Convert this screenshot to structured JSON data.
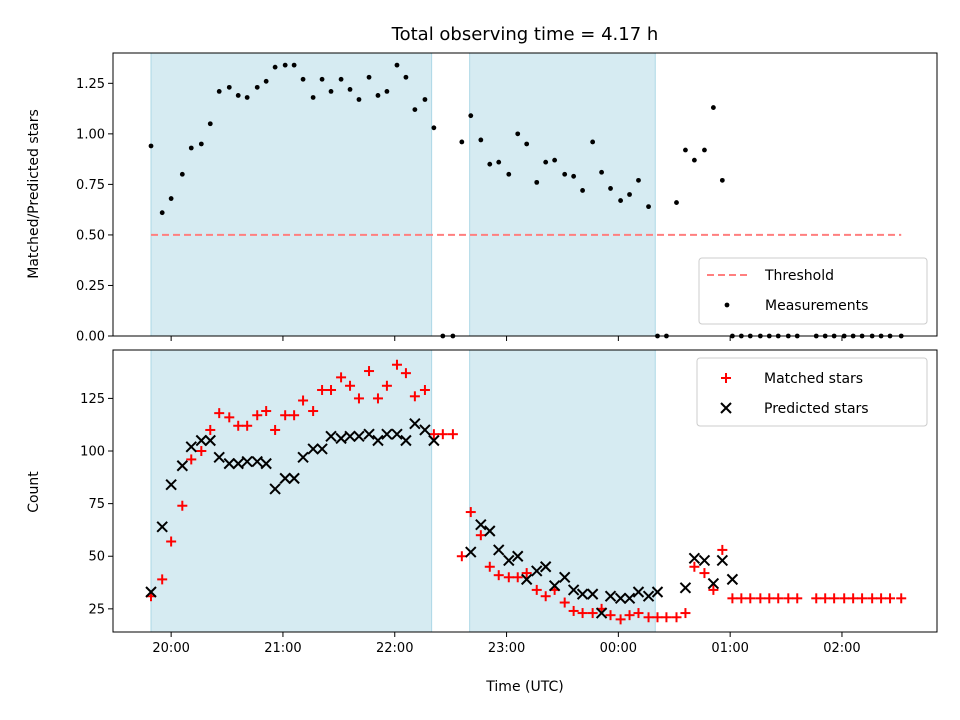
{
  "title": "Total observing time = 4.17 h",
  "colors": {
    "band": "#add8e6",
    "threshold": "#ff7f7f",
    "matched": "#ff0000",
    "predicted": "#000000",
    "measurement": "#000000"
  },
  "chart_data": [
    {
      "type": "scatter",
      "panel": "top",
      "xlabel": "",
      "ylabel": "Matched/Predicted stars",
      "xlim_hours": [
        19.48,
        26.85
      ],
      "ylim": [
        0,
        1.4
      ],
      "yticks": [
        "0.00",
        "0.25",
        "0.50",
        "0.75",
        "1.00",
        "1.25"
      ],
      "ytick_values": [
        0,
        0.25,
        0.5,
        0.75,
        1.0,
        1.25
      ],
      "shaded_intervals_hours": [
        [
          19.82,
          22.33
        ],
        [
          22.67,
          24.33
        ]
      ],
      "threshold": {
        "name": "Threshold",
        "value": 0.5,
        "x_range_hours": [
          19.82,
          26.53
        ],
        "style": "dashed"
      },
      "legend": {
        "placement": "lower right",
        "entries": [
          "Threshold",
          "Measurements"
        ]
      },
      "series": [
        {
          "name": "Measurements",
          "x_hours": [
            19.82,
            19.92,
            20.0,
            20.1,
            20.18,
            20.27,
            20.35,
            20.43,
            20.52,
            20.6,
            20.68,
            20.77,
            20.85,
            20.93,
            21.02,
            21.1,
            21.18,
            21.27,
            21.35,
            21.43,
            21.52,
            21.6,
            21.68,
            21.77,
            21.85,
            21.93,
            22.02,
            22.1,
            22.18,
            22.27,
            22.35,
            22.43,
            22.52,
            22.6,
            22.68,
            22.77,
            22.85,
            22.93,
            23.02,
            23.1,
            23.18,
            23.27,
            23.35,
            23.43,
            23.52,
            23.6,
            23.68,
            23.77,
            23.85,
            23.93,
            24.02,
            24.1,
            24.18,
            24.27,
            24.35,
            24.43,
            24.52,
            24.6,
            24.68,
            24.77,
            24.85,
            24.93,
            25.02,
            25.1,
            25.18,
            25.27,
            25.35,
            25.43,
            25.52,
            25.6,
            25.77,
            25.85,
            25.93,
            26.02,
            26.1,
            26.18,
            26.27,
            26.35,
            26.43,
            26.53
          ],
          "values": [
            0.94,
            0.61,
            0.68,
            0.8,
            0.93,
            0.95,
            1.05,
            1.21,
            1.23,
            1.19,
            1.18,
            1.23,
            1.26,
            1.33,
            1.34,
            1.34,
            1.27,
            1.18,
            1.27,
            1.21,
            1.27,
            1.22,
            1.17,
            1.28,
            1.19,
            1.21,
            1.34,
            1.28,
            1.12,
            1.17,
            1.03,
            0.0,
            0.0,
            0.96,
            1.09,
            0.97,
            0.85,
            0.86,
            0.8,
            1.0,
            0.95,
            0.76,
            0.86,
            0.87,
            0.8,
            0.79,
            0.72,
            0.96,
            0.81,
            0.73,
            0.67,
            0.7,
            0.77,
            0.64,
            0.0,
            0.0,
            0.66,
            0.92,
            0.87,
            0.92,
            1.13,
            0.77,
            0.0,
            0.0,
            0.0,
            0.0,
            0.0,
            0.0,
            0.0,
            0.0,
            0.0,
            0.0,
            0.0,
            0.0,
            0.0,
            0.0,
            0.0,
            0.0,
            0.0,
            0.0
          ]
        }
      ]
    },
    {
      "type": "scatter",
      "panel": "bottom",
      "xlabel": "Time (UTC)",
      "ylabel": "Count",
      "xlim_hours": [
        19.48,
        26.85
      ],
      "ylim": [
        14,
        148
      ],
      "xticks": [
        "20:00",
        "21:00",
        "22:00",
        "23:00",
        "00:00",
        "01:00",
        "02:00"
      ],
      "xtick_hours": [
        20,
        21,
        22,
        23,
        24,
        25,
        26
      ],
      "yticks": [
        "25",
        "50",
        "75",
        "100",
        "125"
      ],
      "ytick_values": [
        25,
        50,
        75,
        100,
        125
      ],
      "shaded_intervals_hours": [
        [
          19.82,
          22.33
        ],
        [
          22.67,
          24.33
        ]
      ],
      "legend": {
        "placement": "upper right",
        "entries": [
          "Matched stars",
          "Predicted stars"
        ]
      },
      "series": [
        {
          "name": "Matched stars",
          "marker": "+",
          "x_hours": [
            19.82,
            19.92,
            20.0,
            20.1,
            20.18,
            20.27,
            20.35,
            20.43,
            20.52,
            20.6,
            20.68,
            20.77,
            20.85,
            20.93,
            21.02,
            21.1,
            21.18,
            21.27,
            21.35,
            21.43,
            21.52,
            21.6,
            21.68,
            21.77,
            21.85,
            21.93,
            22.02,
            22.1,
            22.18,
            22.27,
            22.35,
            22.43,
            22.52,
            22.6,
            22.68,
            22.77,
            22.85,
            22.93,
            23.02,
            23.1,
            23.18,
            23.27,
            23.35,
            23.43,
            23.52,
            23.6,
            23.68,
            23.77,
            23.85,
            23.93,
            24.02,
            24.1,
            24.18,
            24.27,
            24.35,
            24.43,
            24.52,
            24.6,
            24.68,
            24.77,
            24.85,
            24.93,
            25.02,
            25.1,
            25.18,
            25.27,
            25.35,
            25.43,
            25.52,
            25.6,
            25.77,
            25.85,
            25.93,
            26.02,
            26.1,
            26.18,
            26.27,
            26.35,
            26.43,
            26.53
          ],
          "values": [
            31,
            39,
            57,
            74,
            96,
            100,
            110,
            118,
            116,
            112,
            112,
            117,
            119,
            110,
            117,
            117,
            124,
            119,
            129,
            129,
            135,
            131,
            125,
            138,
            125,
            131,
            141,
            137,
            126,
            129,
            108,
            108,
            108,
            50,
            71,
            60,
            45,
            41,
            40,
            40,
            42,
            34,
            31,
            34,
            28,
            24,
            23,
            23,
            25,
            22,
            20,
            22,
            23,
            21,
            21,
            21,
            21,
            23,
            45,
            42,
            34,
            53,
            30,
            30,
            30,
            30,
            30,
            30,
            30,
            30,
            30,
            30,
            30,
            30,
            30,
            30,
            30,
            30,
            30,
            30
          ]
        },
        {
          "name": "Predicted stars",
          "marker": "x",
          "x_hours": [
            19.82,
            19.92,
            20.0,
            20.1,
            20.18,
            20.27,
            20.35,
            20.43,
            20.52,
            20.6,
            20.68,
            20.77,
            20.85,
            20.93,
            21.02,
            21.1,
            21.18,
            21.27,
            21.35,
            21.43,
            21.52,
            21.6,
            21.68,
            21.77,
            21.85,
            21.93,
            22.02,
            22.1,
            22.18,
            22.27,
            22.35,
            22.68,
            22.77,
            22.85,
            22.93,
            23.02,
            23.1,
            23.18,
            23.27,
            23.35,
            23.43,
            23.52,
            23.6,
            23.68,
            23.77,
            23.85,
            23.93,
            24.02,
            24.1,
            24.18,
            24.27,
            24.35,
            24.6,
            24.68,
            24.77,
            24.85,
            24.93,
            25.02
          ],
          "values": [
            33,
            64,
            84,
            93,
            102,
            105,
            105,
            97,
            94,
            94,
            95,
            95,
            94,
            82,
            87,
            87,
            97,
            101,
            101,
            107,
            106,
            107,
            107,
            108,
            105,
            108,
            108,
            105,
            113,
            110,
            105,
            52,
            65,
            62,
            53,
            48,
            50,
            39,
            43,
            45,
            36,
            40,
            34,
            32,
            32,
            23,
            31,
            30,
            30,
            33,
            31,
            33,
            35,
            49,
            48,
            37,
            48,
            39
          ]
        }
      ]
    }
  ]
}
